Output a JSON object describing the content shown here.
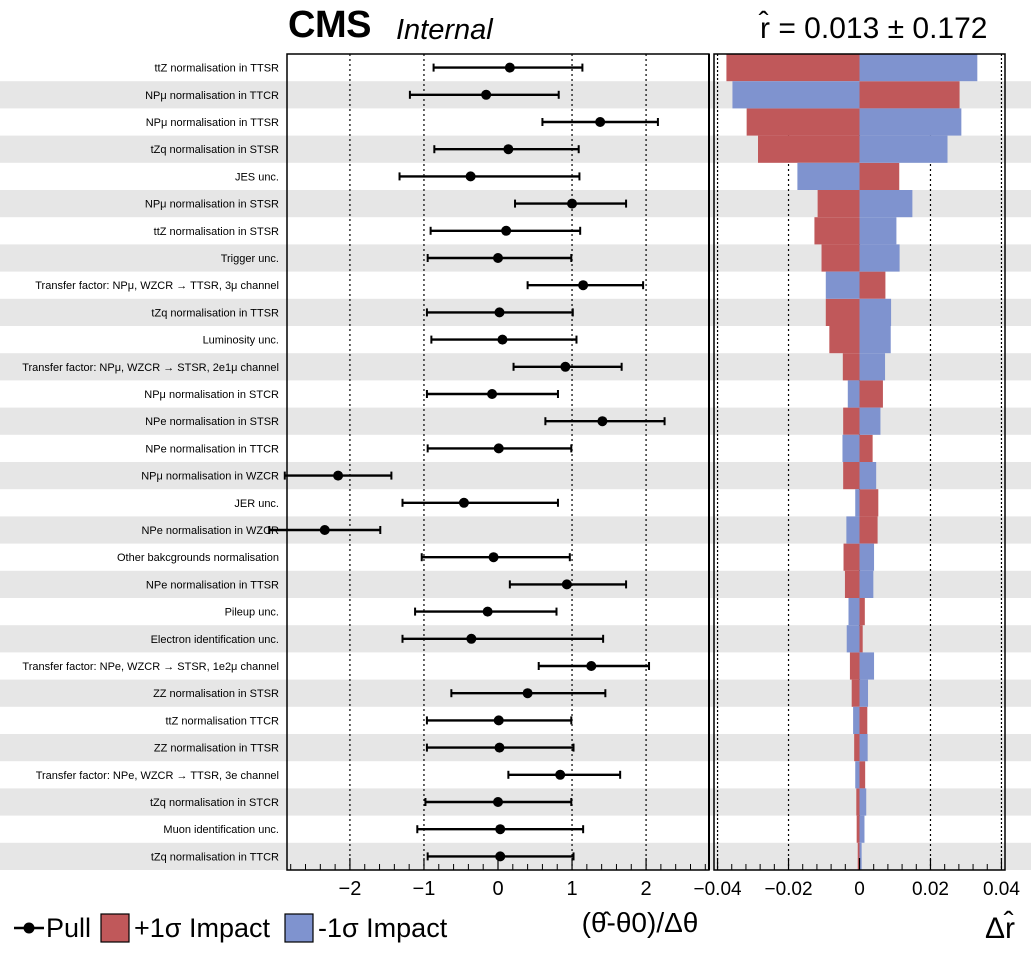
{
  "header": {
    "experiment": "CMS",
    "status": "Internal",
    "result": "r̂ = 0.013 ± 0.172"
  },
  "legend": {
    "pull_label": "Pull",
    "up_label": "+1σ Impact",
    "down_label": "-1σ Impact"
  },
  "colors": {
    "up_impact": "#c0585a",
    "down_impact": "#7f93cf",
    "row_shade": "#e6e6e6"
  },
  "chart_data": [
    {
      "type": "scatter",
      "name": "pulls",
      "xlabel": "(θ̂-θ0)/Δθ",
      "xlim": [
        -2.85,
        2.85
      ],
      "xticks": [
        -2,
        -1,
        0,
        1,
        2
      ],
      "xtick_labels": [
        "−2",
        "−1",
        "0",
        "1",
        "2"
      ],
      "grid_lines": [
        -2,
        -1,
        1,
        2
      ],
      "categories": [
        "ttZ normalisation in TTSR",
        "NPμ normalisation in TTCR",
        "NPμ normalisation in TTSR",
        "tZq normalisation in STSR",
        "JES unc.",
        "NPμ normalisation in STSR",
        "ttZ normalisation in STSR",
        "Trigger unc.",
        "Transfer factor: NPμ, WZCR → TTSR, 3μ channel",
        "tZq normalisation in TTSR",
        "Luminosity unc.",
        "Transfer factor: NPμ, WZCR → STSR, 2e1μ channel",
        "NPμ normalisation in STCR",
        "NPe normalisation in STSR",
        "NPe normalisation in TTCR",
        "NPμ normalisation in WZCR",
        "JER unc.",
        "NPe normalisation in WZCR",
        "Other bakcgrounds normalisation",
        "NPe normalisation in TTSR",
        "Pileup unc.",
        "Electron identification unc.",
        "Transfer factor: NPe, WZCR → STSR, 1e2μ channel",
        "ZZ normalisation in STSR",
        "ttZ normalisation TTCR",
        "ZZ normalisation in TTSR",
        "Transfer factor: NPe, WZCR → TTSR, 3e channel",
        "tZq normalisation in STCR",
        "Muon identification unc.",
        "tZq normalisation in TTCR"
      ],
      "values": [
        0.16,
        -0.16,
        1.38,
        0.14,
        -0.37,
        1.0,
        0.11,
        0.0,
        1.15,
        0.02,
        0.06,
        0.91,
        -0.08,
        1.41,
        0.01,
        -2.16,
        -0.46,
        -2.34,
        -0.06,
        0.93,
        -0.14,
        -0.36,
        1.26,
        0.4,
        0.01,
        0.02,
        0.84,
        0.0,
        0.03,
        0.03
      ],
      "err_low": [
        1.03,
        1.03,
        0.78,
        1.0,
        0.96,
        0.77,
        1.02,
        0.95,
        0.75,
        0.98,
        0.96,
        0.7,
        0.88,
        0.77,
        0.96,
        0.72,
        0.83,
        0.75,
        0.97,
        0.77,
        0.98,
        0.93,
        0.71,
        1.03,
        0.97,
        0.98,
        0.7,
        0.98,
        1.12,
        0.98
      ],
      "err_high": [
        0.98,
        0.98,
        0.78,
        0.95,
        1.47,
        0.73,
        1.0,
        0.99,
        0.81,
        0.99,
        1.0,
        0.76,
        0.89,
        0.84,
        0.98,
        0.72,
        1.27,
        0.75,
        1.03,
        0.8,
        0.93,
        1.78,
        0.78,
        1.05,
        0.98,
        1.0,
        0.81,
        0.99,
        1.12,
        0.99
      ]
    },
    {
      "type": "bar",
      "orientation": "horizontal",
      "name": "impacts",
      "xlabel": "Δr̂",
      "xlim": [
        -0.041,
        0.041
      ],
      "xticks": [
        -0.04,
        -0.02,
        0,
        0.02,
        0.04
      ],
      "xtick_labels": [
        "−0.04",
        "−0.02",
        "0",
        "0.02",
        "0.04"
      ],
      "grid_lines": [
        -0.02,
        0.02
      ],
      "series": [
        {
          "name": "+1σ Impact",
          "values": [
            -0.0375,
            0.0282,
            -0.0318,
            -0.0286,
            0.0112,
            -0.0118,
            -0.0127,
            -0.0107,
            0.0073,
            -0.0095,
            -0.0085,
            -0.0047,
            0.0066,
            -0.0046,
            0.0037,
            -0.0046,
            0.0053,
            0.0051,
            -0.0045,
            -0.0041,
            0.0015,
            0.0009,
            -0.0027,
            -0.0022,
            0.0022,
            -0.0015,
            0.0016,
            -0.0009,
            -0.0008,
            -0.0005
          ]
        },
        {
          "name": "-1σ Impact",
          "values": [
            0.0332,
            -0.0358,
            0.0287,
            0.0248,
            -0.0175,
            0.0149,
            0.0104,
            0.0113,
            -0.0095,
            0.0089,
            0.0088,
            0.0072,
            -0.0033,
            0.0059,
            -0.0048,
            0.0047,
            -0.0012,
            -0.0037,
            0.0041,
            0.0039,
            -0.0031,
            -0.0036,
            0.0041,
            0.0024,
            -0.0018,
            0.0023,
            -0.0012,
            0.0019,
            0.0014,
            0.0006
          ]
        }
      ]
    }
  ]
}
